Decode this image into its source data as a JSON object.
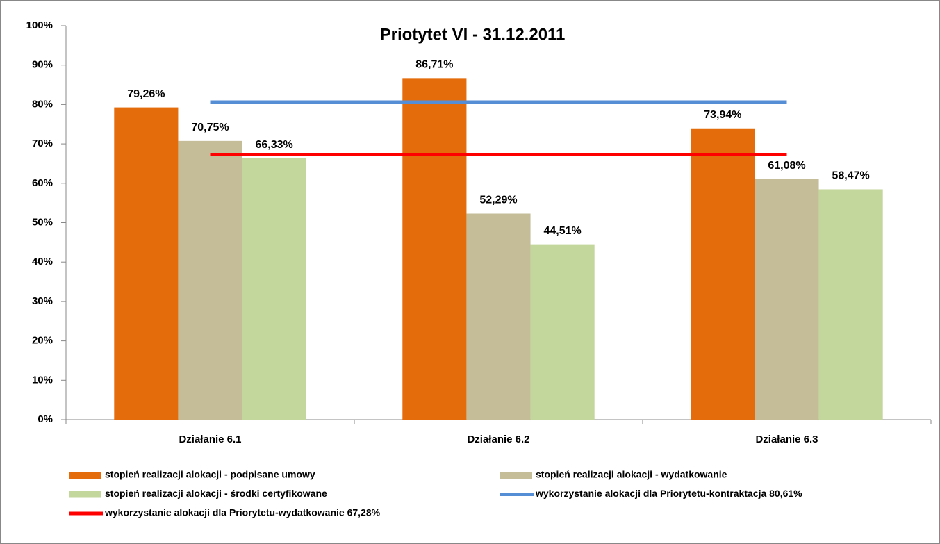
{
  "chart_data": {
    "type": "bar",
    "title": "Priotytet VI - 31.12.2011",
    "categories": [
      "Działanie  6.1",
      "Działanie  6.2",
      "Działanie  6.3"
    ],
    "series": [
      {
        "name": "stopień realizacji alokacji - podpisane umowy",
        "color": "#e46c0a",
        "values": [
          79.26,
          86.71,
          73.94
        ],
        "value_labels": [
          "79,26%",
          "86,71%",
          "73,94%"
        ]
      },
      {
        "name": "stopień realizacji alokacji - wydatkowanie",
        "color": "#c4bd97",
        "values": [
          70.75,
          52.29,
          61.08
        ],
        "value_labels": [
          "70,75%",
          "52,29%",
          "61,08%"
        ]
      },
      {
        "name": "stopień realizacji alokacji - środki certyfikowane",
        "color": "#c3d69b",
        "values": [
          66.33,
          44.51,
          58.47
        ],
        "value_labels": [
          "66,33%",
          "44,51%",
          "58,47%"
        ]
      },
      {
        "name": "wykorzystanie alokacji dla Priorytetu-kontraktacja  80,61%",
        "type": "line",
        "color": "#558ed5",
        "values": [
          80.61,
          80.61,
          80.61
        ]
      },
      {
        "name": "wykorzystanie alokacji dla Priorytetu-wydatkowanie  67,28%",
        "type": "line",
        "color": "#ff0000",
        "values": [
          67.28,
          67.28,
          67.28
        ]
      }
    ],
    "ylim": [
      0,
      100
    ],
    "yticks": [
      {
        "value": 0,
        "label": "0%"
      },
      {
        "value": 10,
        "label": "10%"
      },
      {
        "value": 20,
        "label": "20%"
      },
      {
        "value": 30,
        "label": "30%"
      },
      {
        "value": 40,
        "label": "40%"
      },
      {
        "value": 50,
        "label": "50%"
      },
      {
        "value": 60,
        "label": "60%"
      },
      {
        "value": 70,
        "label": "70%"
      },
      {
        "value": 80,
        "label": "80%"
      },
      {
        "value": 90,
        "label": "90%"
      },
      {
        "value": 100,
        "label": "100%"
      }
    ],
    "grid": false,
    "legend": "bottom"
  }
}
